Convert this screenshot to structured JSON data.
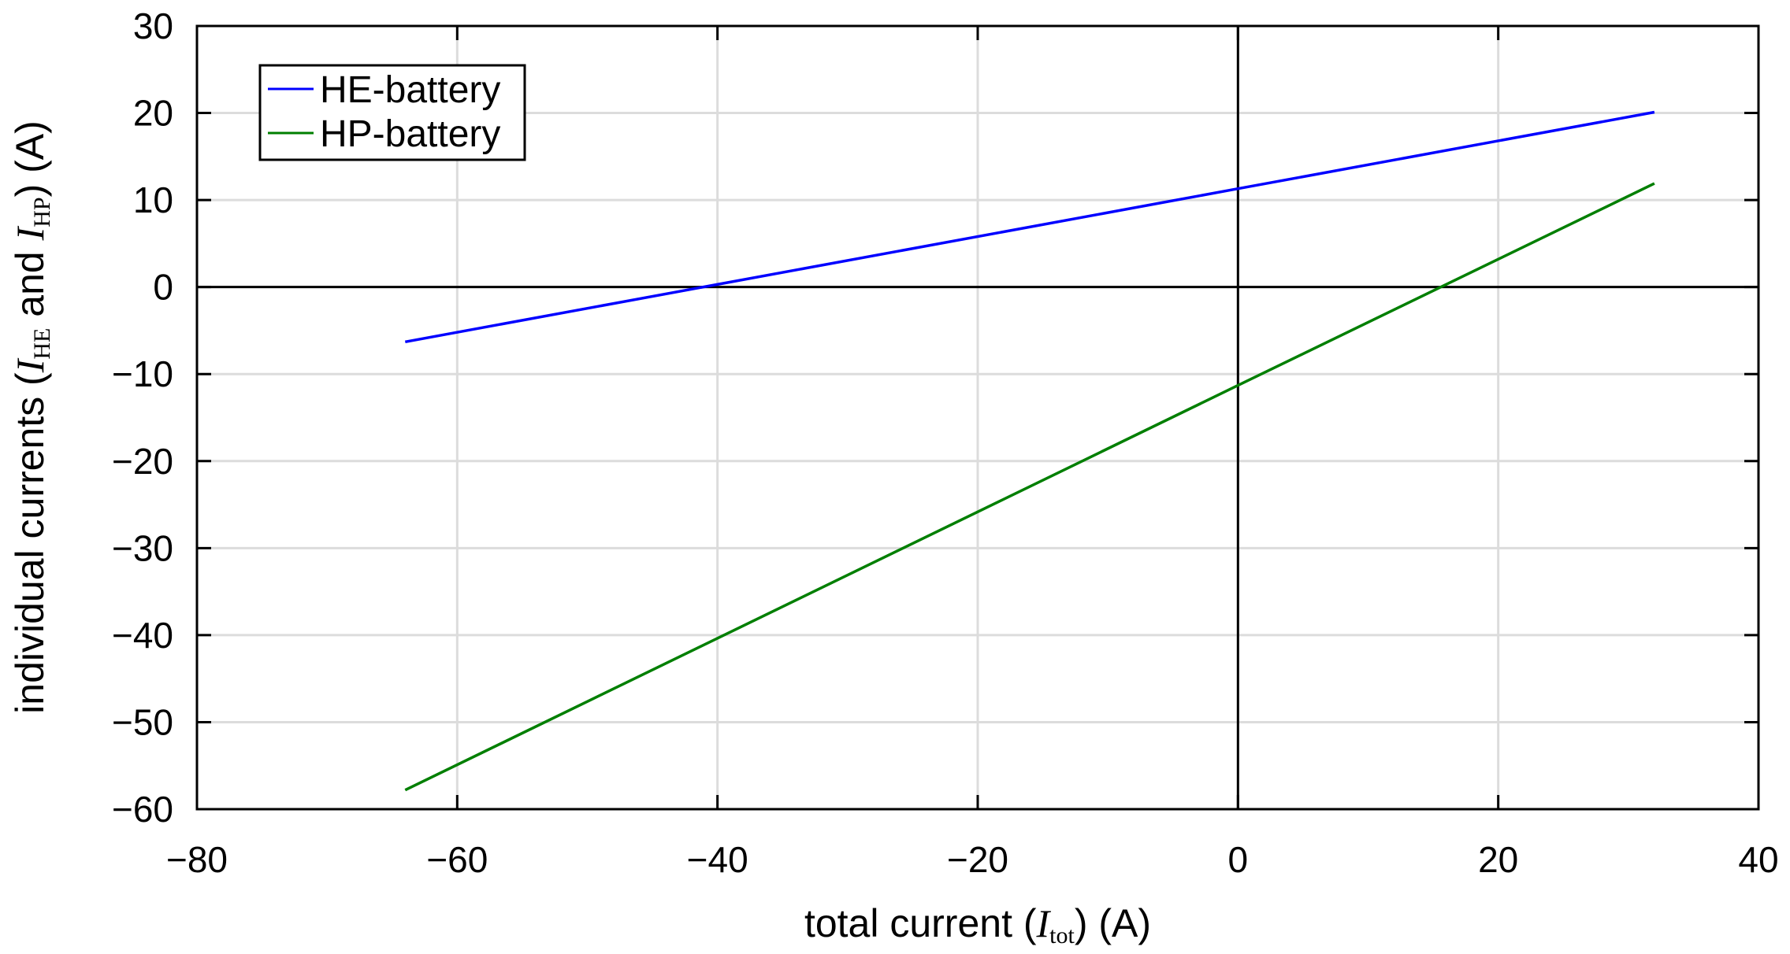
{
  "chart_data": {
    "type": "line",
    "xlabel": {
      "prefix": "total current (",
      "var": "I",
      "sub": "tot",
      "suffix": ") (A)"
    },
    "ylabel": {
      "prefix": "individual currents (",
      "var1": "I",
      "sub1": "HE",
      "middle": " and ",
      "var2": "I",
      "sub2": "HP",
      "suffix": ") (A)"
    },
    "xlim": [
      -80,
      40
    ],
    "ylim": [
      -60,
      30
    ],
    "xticks": [
      -80,
      -60,
      -40,
      -20,
      0,
      20,
      40
    ],
    "yticks": [
      -60,
      -50,
      -40,
      -30,
      -20,
      -10,
      0,
      10,
      20,
      30
    ],
    "xtick_labels": [
      "−80",
      "−60",
      "−40",
      "−20",
      "0",
      "20",
      "40"
    ],
    "ytick_labels": [
      "−60",
      "−50",
      "−40",
      "−30",
      "−20",
      "−10",
      "0",
      "10",
      "20",
      "30"
    ],
    "grid": true,
    "zero_lines": true,
    "legend_position": "top-left",
    "series": [
      {
        "name": "HE-battery",
        "color": "#0000ff",
        "x": [
          -64,
          0,
          32
        ],
        "y": [
          -6.3,
          11.3,
          20.1
        ]
      },
      {
        "name": "HP-battery",
        "color": "#007f00",
        "x": [
          -64,
          0,
          32
        ],
        "y": [
          -57.8,
          -11.3,
          11.9
        ]
      }
    ]
  }
}
